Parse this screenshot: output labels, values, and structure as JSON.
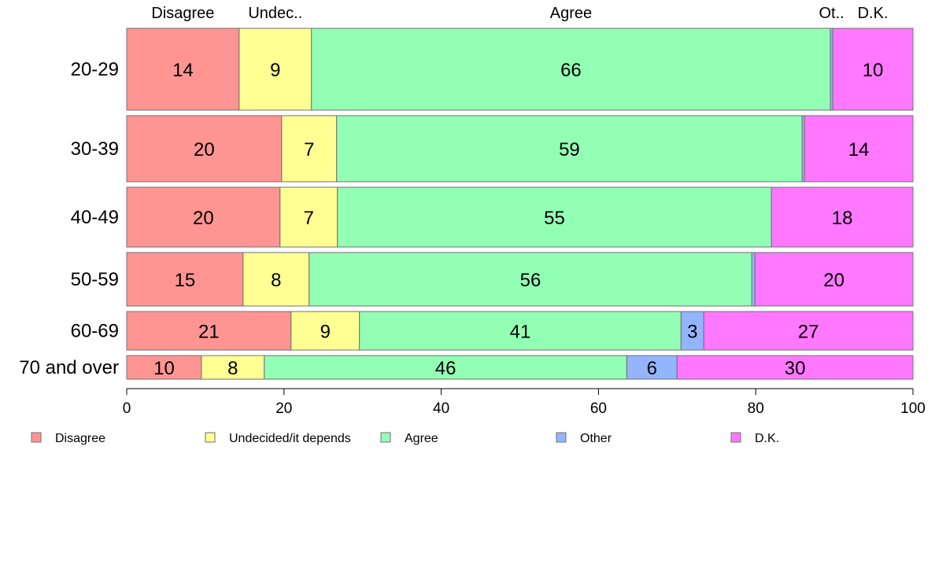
{
  "chart_data": {
    "type": "bar",
    "orientation": "horizontal",
    "stacked": true,
    "title": "",
    "xlabel": "",
    "ylabel": "",
    "xlim": [
      0,
      100
    ],
    "ticks": [
      0,
      20,
      40,
      60,
      80,
      100
    ],
    "grid": false,
    "legend_position": "bottom",
    "categories": [
      "20-29",
      "30-39",
      "40-49",
      "50-59",
      "60-69",
      "70 and over"
    ],
    "series": [
      {
        "name": "Disagree",
        "header": "Disagree",
        "color": "#ff9593",
        "values": [
          14.3,
          19.7,
          19.5,
          14.8,
          20.9,
          9.5
        ],
        "labels": [
          "14",
          "20",
          "20",
          "15",
          "21",
          "10"
        ]
      },
      {
        "name": "Undecided/it depends",
        "header": "Undec..",
        "color": "#ffff93",
        "values": [
          9.2,
          7.0,
          7.3,
          8.4,
          8.7,
          8.0
        ],
        "labels": [
          "9",
          "7",
          "7",
          "8",
          "9",
          "8"
        ]
      },
      {
        "name": "Agree",
        "header": "Agree",
        "color": "#93ffb4",
        "values": [
          66.0,
          59.2,
          55.2,
          56.3,
          40.9,
          46.1
        ],
        "labels": [
          "66",
          "59",
          "55",
          "56",
          "41",
          "46"
        ]
      },
      {
        "name": "Other",
        "header": "Ot..",
        "color": "#93b4ff",
        "values": [
          0.3,
          0.3,
          0.0,
          0.4,
          2.9,
          6.4
        ],
        "labels": [
          "",
          "",
          "",
          "",
          "3",
          "6"
        ]
      },
      {
        "name": "D.K.",
        "header": "D.K.",
        "color": "#ff78ff",
        "values": [
          10.2,
          13.8,
          18.0,
          20.1,
          26.6,
          30.0
        ],
        "labels": [
          "10",
          "14",
          "18",
          "20",
          "27",
          "30"
        ]
      }
    ]
  }
}
